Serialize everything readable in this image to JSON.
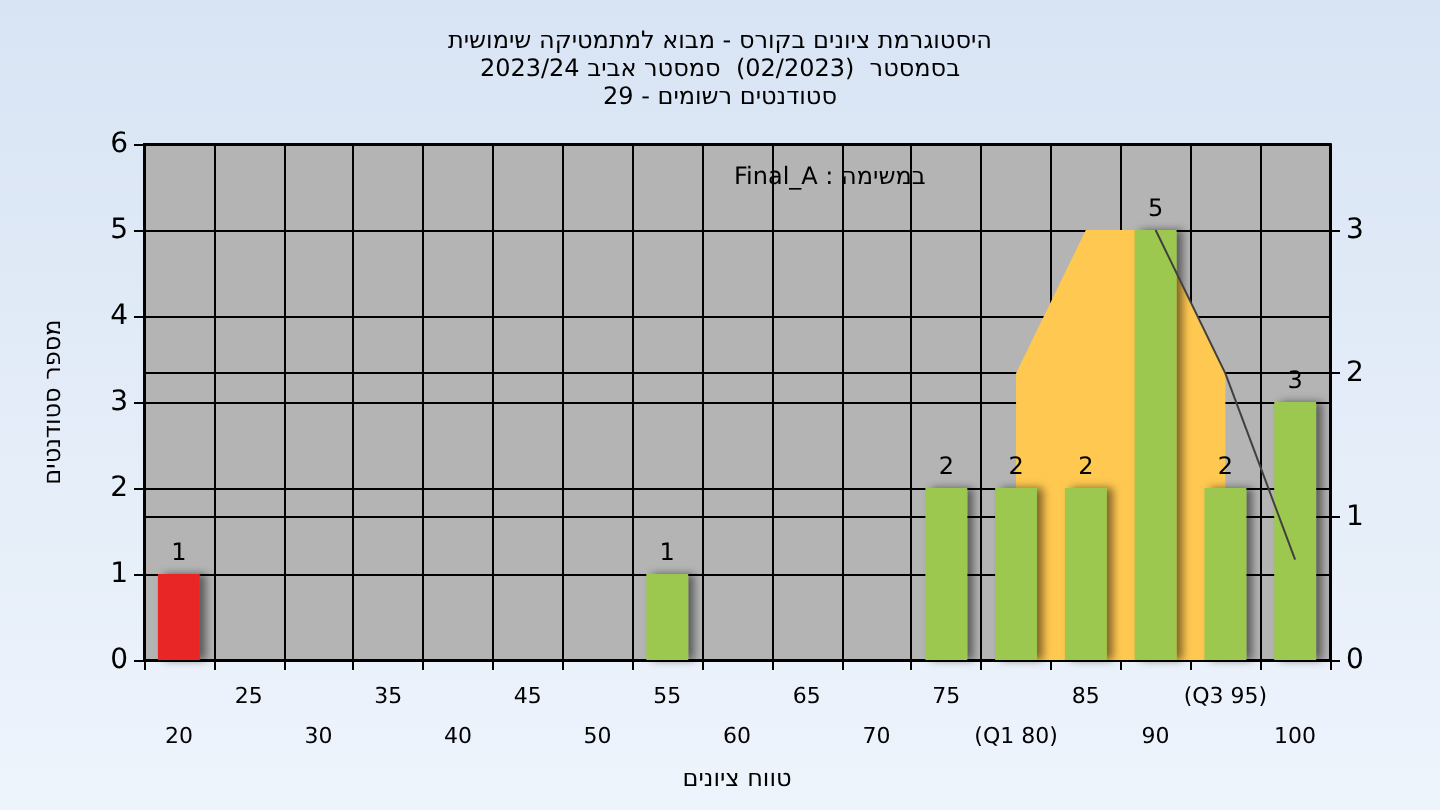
{
  "chart_data": {
    "type": "bar",
    "title": "היסטוגרמת ציונים בקורס - מבוא למתמטיקה שימושית\nבסמסטר  (02/2023)  סמסטר אביב 2023/24\nסטודנטים רשומים - 29",
    "xlabel": "טווח ציונים",
    "ylabel": "מספר סטודנטים",
    "annotations": [
      "Final_A : במשימה"
    ],
    "categories": [
      "20",
      "25",
      "30",
      "35",
      "40",
      "45",
      "50",
      "55",
      "60",
      "65",
      "70",
      "75",
      "(Q1 80)",
      "85",
      "90",
      "(Q3 95)",
      "100"
    ],
    "series": [
      {
        "colors": [
          "#e82828",
          "#9cc850",
          "#9cc850",
          "#9cc850",
          "#9cc850",
          "#9cc850",
          "#9cc850",
          "#9cc850",
          "#9cc850",
          "#9cc850",
          "#9cc850",
          "#9cc850",
          "#9cc850",
          "#9cc850",
          "#9cc850",
          "#9cc850",
          "#9cc850"
        ],
        "values": [
          1,
          0,
          0,
          0,
          0,
          0,
          0,
          1,
          0,
          0,
          0,
          2,
          2,
          2,
          5,
          2,
          3
        ],
        "value_labels": [
          "1",
          null,
          null,
          null,
          null,
          null,
          null,
          "1",
          null,
          null,
          null,
          "2",
          "2",
          "2",
          "5",
          "2",
          "3"
        ]
      },
      {
        "type": "area",
        "axis": "y2",
        "color": "#ffc850",
        "values": [
          null,
          null,
          null,
          null,
          null,
          null,
          null,
          null,
          null,
          null,
          null,
          null,
          2,
          3,
          3,
          2,
          null
        ]
      },
      {
        "type": "line",
        "axis": "y2",
        "color": "#404040",
        "values": [
          null,
          null,
          null,
          null,
          null,
          null,
          null,
          null,
          null,
          null,
          null,
          null,
          null,
          null,
          3,
          2,
          0.7
        ]
      }
    ],
    "ylim": [
      0,
      6
    ],
    "yticks": [
      0,
      1,
      2,
      3,
      4,
      5,
      6
    ],
    "y2lim": [
      0,
      3.6
    ],
    "y2ticks": [
      0,
      1,
      2,
      3
    ],
    "grid": true
  }
}
